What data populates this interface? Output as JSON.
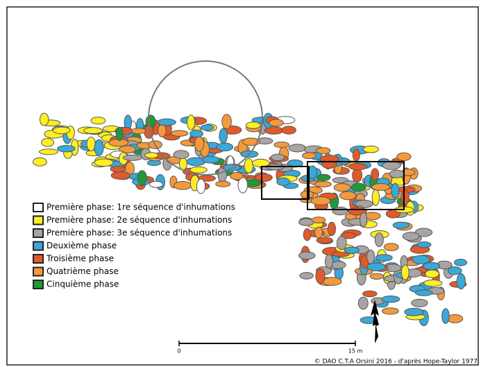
{
  "legend": [
    {
      "label": "Première phase: 1re séquence d'inhumations",
      "color": "#ffffff"
    },
    {
      "label": "Première phase: 2e séquence d'inhumations",
      "color": "#ffee22"
    },
    {
      "label": "Première phase: 3e séquence d'inhumations",
      "color": "#a8a4a4"
    },
    {
      "label": "Deuxième phase",
      "color": "#3aa8d8"
    },
    {
      "label": "Troisième phase",
      "color": "#e25a2a"
    },
    {
      "label": "Quatrième phase",
      "color": "#f49a3a"
    },
    {
      "label": "Cinquième phase",
      "color": "#1e9a3a"
    }
  ],
  "scale": {
    "start_label": "0",
    "end_label": "15 m"
  },
  "credit": "© DAO C.T.A Orsini 2016 - d'après Hope-Taylor 1977"
}
